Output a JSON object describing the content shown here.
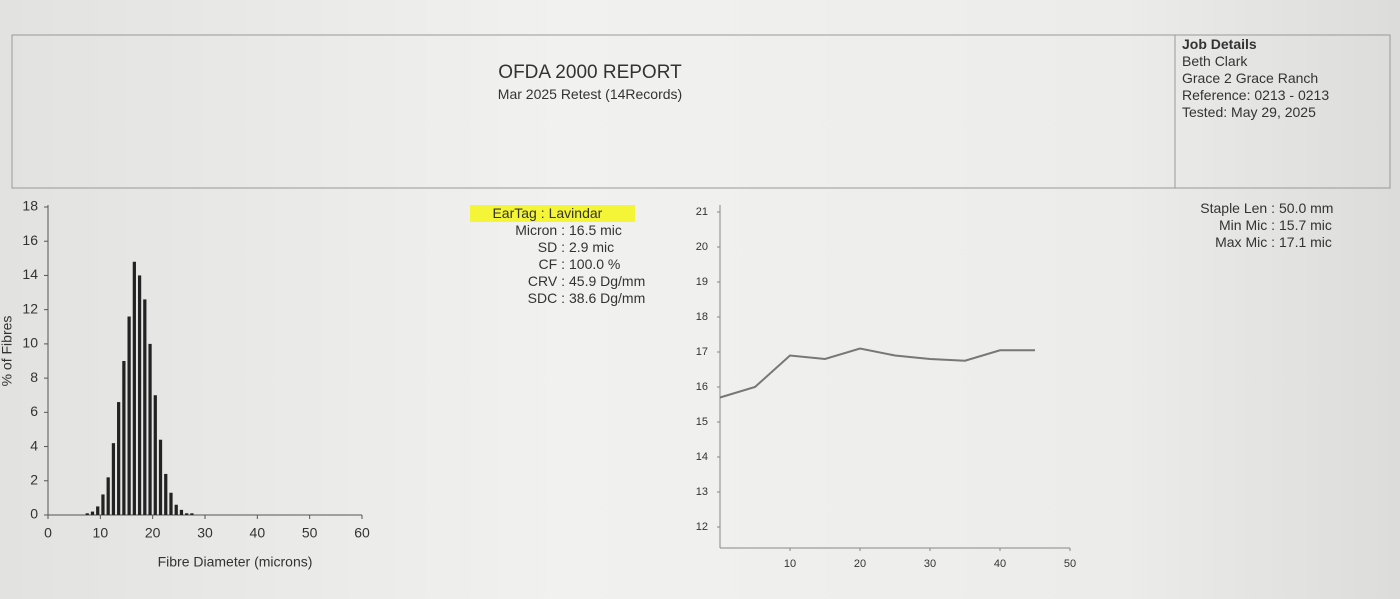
{
  "header": {
    "title": "OFDA 2000 REPORT",
    "subtitle": "Mar 2025 Retest (14Records)"
  },
  "job_details": [
    "Job Details",
    "Beth Clark",
    "Grace 2 Grace Ranch",
    "Reference: 0213 - 0213",
    "Tested: May 29, 2025"
  ],
  "stats": [
    [
      "EarTag :",
      "Lavindar"
    ],
    [
      "Micron :",
      "16.5 mic"
    ],
    [
      "SD :",
      "2.9 mic"
    ],
    [
      "CF :",
      "100.0 %"
    ],
    [
      "CRV :",
      "45.9 Dg/mm"
    ],
    [
      "SDC :",
      "38.6 Dg/mm"
    ]
  ],
  "length_stats": [
    [
      "Staple Len :",
      "50.0 mm"
    ],
    [
      "Min Mic :",
      "15.7 mic"
    ],
    [
      "Max Mic :",
      "17.1 mic"
    ]
  ],
  "chart_data": [
    {
      "type": "histogram",
      "x_label": "Fibre Diameter (microns)",
      "y_label": "% of Fibres",
      "bins": [
        7,
        8,
        9,
        10,
        11,
        12,
        13,
        14,
        15,
        16,
        17,
        18,
        19,
        20,
        21,
        22,
        23,
        24,
        25,
        26,
        27,
        28
      ],
      "values": [
        0.1,
        0.2,
        0.5,
        1.2,
        2.2,
        4.2,
        6.6,
        9.0,
        11.6,
        14.8,
        14.0,
        12.6,
        10.0,
        7.0,
        4.4,
        2.4,
        1.3,
        0.6,
        0.3,
        0.1,
        0.1
      ],
      "color": "#222222",
      "xlim": [
        0,
        60
      ],
      "xticks": [
        0,
        10,
        20,
        30,
        40,
        50,
        60
      ],
      "ylim": [
        0,
        18
      ],
      "yticks": [
        0,
        2,
        4,
        6,
        8,
        10,
        12,
        14,
        16,
        18
      ]
    },
    {
      "type": "line",
      "x": [
        0,
        5,
        10,
        15,
        20,
        25,
        30,
        35,
        40,
        45
      ],
      "values": [
        15.7,
        16.0,
        16.9,
        16.8,
        17.1,
        16.9,
        16.8,
        16.75,
        17.05,
        17.05
      ],
      "color": "#777777",
      "xlim": [
        0,
        50
      ],
      "xticks": [
        10,
        20,
        30,
        40,
        50
      ],
      "ylim": [
        11.4,
        21.2
      ],
      "yticks": [
        12,
        13,
        14,
        15,
        16,
        17,
        18,
        19,
        20,
        21
      ]
    }
  ]
}
